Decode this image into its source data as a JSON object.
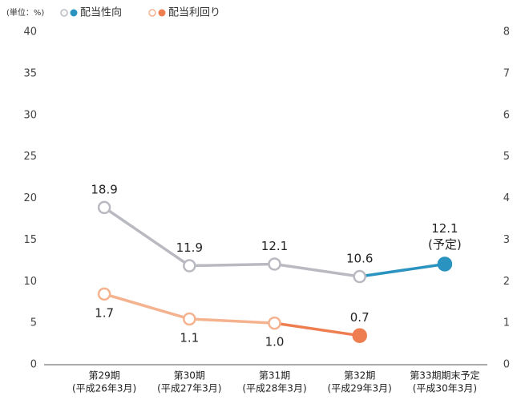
{
  "chart_data": {
    "type": "line",
    "unit_label": "(単位：%)",
    "categories": [
      [
        "第29期",
        "(平成26年3月)"
      ],
      [
        "第30期",
        "(平成27年3月)"
      ],
      [
        "第31期",
        "(平成28年3月)"
      ],
      [
        "第32期",
        "(平成29年3月)"
      ],
      [
        "第33期期末予定",
        "(平成30年3月)"
      ]
    ],
    "series": [
      {
        "name": "配当性向",
        "color": "#b9b9c1",
        "highlight_color": "#2b93bf",
        "highlight_from": 3,
        "values": [
          18.9,
          11.9,
          12.1,
          10.6,
          12.1
        ],
        "annotations": [
          null,
          null,
          null,
          null,
          "(予定)"
        ]
      },
      {
        "name": "配当利回り",
        "axis": "y2",
        "color": "#f5b28e",
        "highlight_color": "#ee7d50",
        "highlight_from": 2,
        "values": [
          1.7,
          1.1,
          1.0,
          0.7,
          null
        ],
        "value_labels": [
          "1.7",
          "1.1",
          "1.0",
          "0.7",
          null
        ]
      }
    ],
    "ylim": [
      0,
      40
    ],
    "yticks": [
      0,
      5,
      10,
      15,
      20,
      25,
      30,
      35,
      40
    ],
    "y2lim": [
      0,
      8
    ],
    "y2ticks": [
      0,
      1,
      2,
      3,
      4,
      5,
      6,
      7,
      8
    ]
  }
}
